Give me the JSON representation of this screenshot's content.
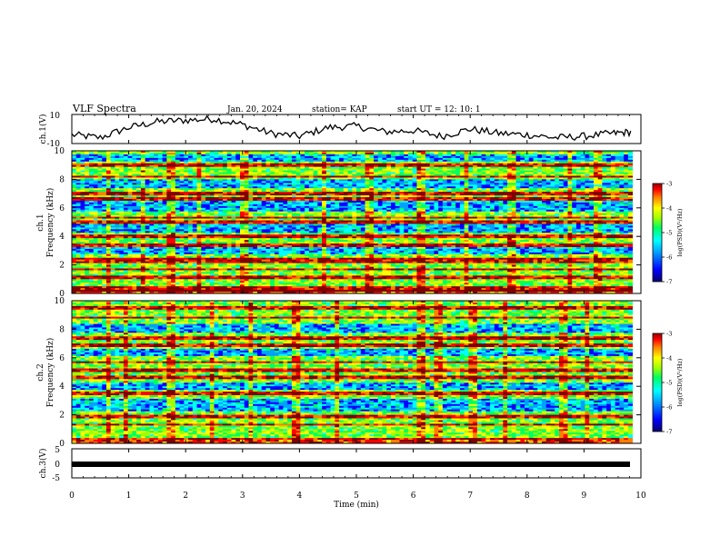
{
  "header": {
    "title": "VLF Spectra",
    "date": "Jan. 20, 2024",
    "station": "station= KAP",
    "start": "start  UT =   12: 10: 1"
  },
  "chart_data": [
    {
      "type": "line",
      "panel": "ch1-waveform",
      "ylabel": "ch.1(V)",
      "ylim": [
        -10,
        10
      ],
      "yticks": [
        "10",
        "-10"
      ],
      "xlim": [
        0,
        10
      ],
      "description_series": [
        {
          "x": [
            0,
            0.5,
            1,
            1.5,
            2,
            2.5,
            3,
            3.5,
            4,
            4.5,
            5,
            5.5,
            6,
            6.5,
            7,
            7.5,
            8,
            8.5,
            9,
            9.5,
            9.85
          ],
          "values": [
            -4,
            -6,
            1,
            5,
            6,
            7,
            3,
            -3,
            -5,
            1,
            2,
            -2,
            -1,
            -5,
            0,
            -3,
            -4,
            -6,
            -5,
            -3,
            -2
          ]
        }
      ]
    },
    {
      "type": "heatmap",
      "panel": "ch1-spectrogram",
      "ylabel": "Frequency (kHz)",
      "channel_label": "ch.1",
      "ylim": [
        0,
        10
      ],
      "yticks": [
        "0",
        "2",
        "4",
        "6",
        "8",
        "10"
      ],
      "xlim": [
        0,
        9.85
      ],
      "colorbar": {
        "label": "log(PSD)(V²/Hz)",
        "ticks": [
          "-3",
          "-4",
          "-5",
          "-6",
          "-7"
        ],
        "range": [
          -7,
          -3
        ]
      },
      "lines_khz": [
        0.2,
        0.4,
        1.1,
        1.7,
        2.2,
        2.4,
        3.4,
        4.0,
        5.0,
        5.3,
        6.6,
        7.0,
        8.2,
        9.0
      ],
      "quiet_bands_khz": [
        [
          2.8,
          3.3
        ],
        [
          4.3,
          4.9
        ],
        [
          5.7,
          6.5
        ],
        [
          7.4,
          8.0
        ],
        [
          9.2,
          9.7
        ]
      ],
      "bursts_min": [
        0.6,
        1.2,
        1.7,
        2.2,
        3.0,
        4.4,
        5.2,
        6.1,
        6.9,
        7.7,
        8.7,
        9.2
      ]
    },
    {
      "type": "heatmap",
      "panel": "ch2-spectrogram",
      "ylabel": "Frequency (kHz)",
      "channel_label": "ch.2",
      "ylim": [
        0,
        10
      ],
      "yticks": [
        "0",
        "2",
        "4",
        "6",
        "8",
        "10"
      ],
      "xlim": [
        0,
        9.85
      ],
      "colorbar": {
        "label": "log(PSD)(V²/Hz)",
        "ticks": [
          "-3",
          "-4",
          "-5",
          "-6",
          "-7"
        ],
        "range": [
          -7,
          -3
        ]
      },
      "lines_khz": [
        0.3,
        1.3,
        1.9,
        3.5,
        4.6,
        5.1,
        5.7,
        6.9,
        7.4,
        8.8,
        9.5
      ],
      "quiet_bands_khz": [
        [
          2.2,
          3.1
        ],
        [
          3.8,
          4.3
        ],
        [
          6.1,
          6.6
        ],
        [
          7.8,
          8.4
        ]
      ],
      "bursts_min": [
        0.6,
        0.9,
        1.7,
        2.4,
        3.1,
        3.9,
        4.6,
        6.1,
        6.4,
        7.0,
        7.6,
        8.6,
        9.0
      ]
    },
    {
      "type": "line",
      "panel": "ch3-waveform",
      "ylabel": "ch.3(V)",
      "ylim": [
        -5,
        5
      ],
      "yticks": [
        "5",
        "0",
        "-5"
      ],
      "xlim": [
        0,
        10
      ],
      "xlabel": "Time (min)",
      "xticks": [
        "0",
        "1",
        "2",
        "3",
        "4",
        "5",
        "6",
        "7",
        "8",
        "9",
        "10"
      ],
      "level": 0
    }
  ],
  "colors": {
    "palette": [
      "#08006b",
      "#0000ff",
      "#00a0ff",
      "#00ffff",
      "#00ff60",
      "#a0ff00",
      "#ffff00",
      "#ff8000",
      "#ff0000",
      "#800000"
    ]
  }
}
